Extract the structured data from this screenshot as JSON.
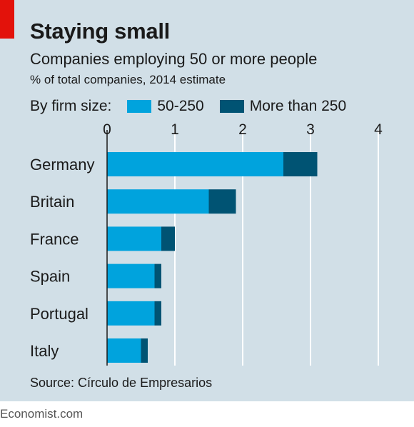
{
  "header": {
    "title": "Staying small",
    "subtitle": "Companies employing 50 or more people",
    "unit": "% of total companies, 2014 estimate"
  },
  "legend": {
    "label": "By firm size:",
    "items": [
      {
        "label": "50-250",
        "color": "#00a3dd"
      },
      {
        "label": "More than 250",
        "color": "#005373"
      }
    ]
  },
  "chart_data": {
    "type": "bar",
    "orientation": "horizontal",
    "stacked": true,
    "categories": [
      "Germany",
      "Britain",
      "France",
      "Spain",
      "Portugal",
      "Italy"
    ],
    "series": [
      {
        "name": "50-250",
        "color": "#00a3dd",
        "values": [
          2.6,
          1.5,
          0.8,
          0.7,
          0.7,
          0.5
        ]
      },
      {
        "name": "More than 250",
        "color": "#005373",
        "values": [
          0.5,
          0.4,
          0.2,
          0.1,
          0.1,
          0.1
        ]
      }
    ],
    "xlim": [
      0,
      4
    ],
    "xticks": [
      "0",
      "1",
      "2",
      "3",
      "4"
    ],
    "grid": true,
    "legend_placement": "top"
  },
  "source": "Source: Círculo de Empresarios",
  "footer": "Economist.com"
}
